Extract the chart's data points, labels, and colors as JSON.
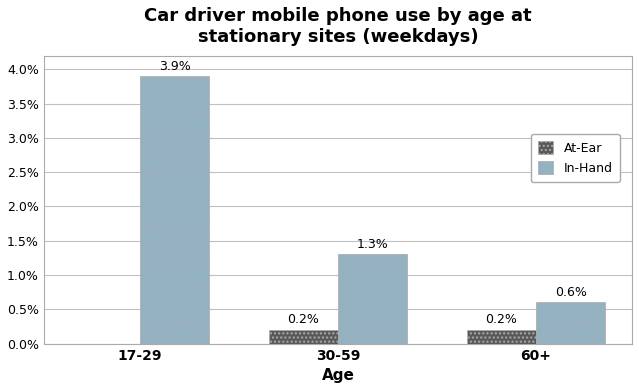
{
  "title": "Car driver mobile phone use by age at\nstationary sites (weekdays)",
  "categories": [
    "17-29",
    "30-59",
    "60+"
  ],
  "at_ear": [
    0.0,
    0.2,
    0.2
  ],
  "in_hand": [
    3.9,
    1.3,
    0.6
  ],
  "at_ear_labels": [
    "",
    "0.2%",
    "0.2%"
  ],
  "in_hand_labels": [
    "3.9%",
    "1.3%",
    "0.6%"
  ],
  "at_ear_color": "#595959",
  "in_hand_color": "#8fb4c8",
  "xlabel": "Age",
  "ylim": [
    0,
    4.2
  ],
  "yticks": [
    0.0,
    0.5,
    1.0,
    1.5,
    2.0,
    2.5,
    3.0,
    3.5,
    4.0
  ],
  "ytick_labels": [
    "0.0%",
    "0.5%",
    "1.0%",
    "1.5%",
    "2.0%",
    "2.5%",
    "3.0%",
    "3.5%",
    "4.0%"
  ],
  "background_color": "#ffffff",
  "legend_labels": [
    "At-Ear",
    "In-Hand"
  ],
  "bar_width": 0.35,
  "title_fontsize": 13,
  "label_fontsize": 9,
  "axis_label_fontsize": 11
}
